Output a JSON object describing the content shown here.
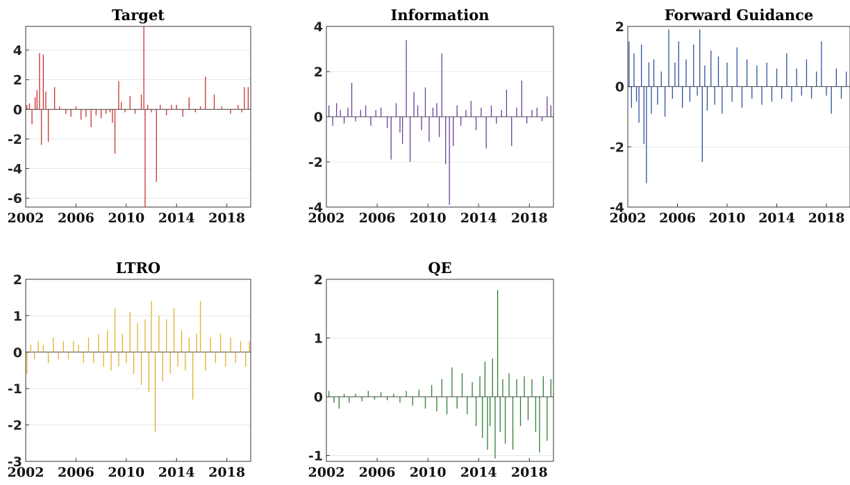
{
  "chart_data": [
    {
      "type": "bar",
      "title": "Target",
      "xlabel": "",
      "ylabel": "",
      "color": "#c8302c",
      "xlim": [
        2002,
        2019.9
      ],
      "ylim": [
        -6.6,
        5.6
      ],
      "yticks": [
        -6,
        -4,
        -2,
        0,
        2,
        4
      ],
      "xticks": [
        2002,
        2006,
        2010,
        2014,
        2018
      ],
      "x": [
        2002.1,
        2002.3,
        2002.5,
        2002.75,
        2002.9,
        2003.1,
        2003.25,
        2003.4,
        2003.6,
        2003.8,
        2004.3,
        2004.7,
        2005.2,
        2005.6,
        2006.0,
        2006.4,
        2006.8,
        2007.2,
        2007.6,
        2008.0,
        2008.4,
        2008.7,
        2008.9,
        2009.1,
        2009.4,
        2009.6,
        2009.9,
        2010.3,
        2010.7,
        2011.2,
        2011.4,
        2011.5,
        2011.7,
        2012.0,
        2012.4,
        2012.7,
        2013.2,
        2013.6,
        2014.0,
        2014.5,
        2015.0,
        2015.5,
        2015.9,
        2016.3,
        2017.0,
        2017.6,
        2018.3,
        2018.9,
        2019.2,
        2019.4,
        2019.7
      ],
      "y": [
        0.3,
        0.4,
        -1.0,
        0.8,
        1.3,
        3.8,
        -2.4,
        3.7,
        1.2,
        -2.2,
        1.5,
        0.2,
        -0.3,
        -0.5,
        0.2,
        -0.7,
        -0.5,
        -1.2,
        -0.4,
        -0.6,
        -0.3,
        -0.2,
        -0.9,
        -3.0,
        1.9,
        0.5,
        -0.2,
        0.9,
        -0.3,
        1.0,
        5.6,
        -6.6,
        0.3,
        -0.2,
        -4.9,
        0.3,
        -0.4,
        0.3,
        0.3,
        -0.5,
        0.8,
        -0.2,
        0.2,
        2.2,
        1.0,
        0.2,
        -0.3,
        0.3,
        -0.2,
        1.5,
        1.5
      ]
    },
    {
      "type": "bar",
      "title": "Information",
      "xlabel": "",
      "ylabel": "",
      "color": "#6a3d9a",
      "xlim": [
        2002,
        2019.9
      ],
      "ylim": [
        -4,
        4
      ],
      "yticks": [
        -4,
        -2,
        0,
        2,
        4
      ],
      "xticks": [
        2002,
        2006,
        2010,
        2014,
        2018
      ],
      "x": [
        2002.2,
        2002.5,
        2002.8,
        2003.1,
        2003.4,
        2003.7,
        2004.0,
        2004.3,
        2004.7,
        2005.1,
        2005.5,
        2005.9,
        2006.3,
        2006.8,
        2007.1,
        2007.5,
        2007.8,
        2008.0,
        2008.3,
        2008.6,
        2008.9,
        2009.2,
        2009.5,
        2009.8,
        2010.1,
        2010.4,
        2010.7,
        2010.9,
        2011.1,
        2011.4,
        2011.7,
        2012.0,
        2012.3,
        2012.6,
        2013.0,
        2013.4,
        2013.8,
        2014.2,
        2014.6,
        2015.0,
        2015.4,
        2015.8,
        2016.2,
        2016.6,
        2017.0,
        2017.4,
        2017.8,
        2018.2,
        2018.6,
        2019.0,
        2019.4,
        2019.7
      ],
      "y": [
        0.5,
        -0.4,
        0.6,
        0.3,
        -0.3,
        0.4,
        1.5,
        -0.2,
        0.3,
        0.5,
        -0.4,
        0.3,
        0.4,
        -0.5,
        -1.9,
        0.6,
        -0.7,
        -1.2,
        3.4,
        -2.0,
        1.1,
        0.5,
        -0.6,
        1.3,
        -1.1,
        0.4,
        0.6,
        -0.9,
        2.8,
        -2.1,
        -3.9,
        -1.3,
        0.5,
        -0.4,
        0.3,
        0.7,
        -0.6,
        0.4,
        -1.4,
        0.5,
        -0.3,
        0.3,
        1.2,
        -1.3,
        0.4,
        1.6,
        -0.3,
        0.3,
        0.4,
        -0.2,
        0.9,
        0.5
      ]
    },
    {
      "type": "bar",
      "title": "Forward Guidance",
      "xlabel": "",
      "ylabel": "",
      "color": "#2c4f9e",
      "xlim": [
        2002,
        2019.9
      ],
      "ylim": [
        -4,
        2
      ],
      "yticks": [
        -4,
        -2,
        0,
        2
      ],
      "xticks": [
        2002,
        2006,
        2010,
        2014,
        2018
      ],
      "x": [
        2002.1,
        2002.3,
        2002.5,
        2002.7,
        2002.9,
        2003.1,
        2003.3,
        2003.5,
        2003.7,
        2003.9,
        2004.1,
        2004.4,
        2004.7,
        2005.0,
        2005.3,
        2005.6,
        2005.8,
        2006.1,
        2006.4,
        2006.7,
        2007.0,
        2007.3,
        2007.6,
        2007.8,
        2008.0,
        2008.2,
        2008.4,
        2008.7,
        2009.0,
        2009.3,
        2009.6,
        2010.0,
        2010.4,
        2010.8,
        2011.2,
        2011.6,
        2012.0,
        2012.4,
        2012.8,
        2013.2,
        2013.6,
        2014.0,
        2014.4,
        2014.8,
        2015.2,
        2015.6,
        2016.0,
        2016.4,
        2016.8,
        2017.2,
        2017.6,
        2018.0,
        2018.4,
        2018.8,
        2019.2,
        2019.6
      ],
      "y": [
        1.5,
        -0.7,
        1.1,
        -0.5,
        -1.2,
        1.4,
        -1.9,
        -3.2,
        0.8,
        -0.9,
        0.9,
        -0.6,
        0.5,
        -1.0,
        1.9,
        -0.4,
        0.8,
        1.5,
        -0.7,
        0.9,
        -0.5,
        1.4,
        -0.3,
        1.9,
        -2.5,
        0.7,
        -0.8,
        1.2,
        -0.6,
        1.0,
        -0.9,
        0.8,
        -0.5,
        1.3,
        -0.7,
        0.9,
        -0.4,
        0.7,
        -0.6,
        0.8,
        -0.5,
        0.6,
        -0.4,
        1.1,
        -0.5,
        0.6,
        -0.3,
        0.9,
        -0.4,
        0.5,
        1.5,
        -0.3,
        -0.9,
        0.6,
        -0.4,
        0.5
      ]
    },
    {
      "type": "bar",
      "title": "LTRO",
      "xlabel": "",
      "ylabel": "",
      "color": "#e0b028",
      "xlim": [
        2002,
        2019.9
      ],
      "ylim": [
        -3,
        2
      ],
      "yticks": [
        -3,
        -2,
        -1,
        0,
        1,
        2
      ],
      "xticks": [
        2002,
        2006,
        2010,
        2014,
        2018
      ],
      "x": [
        2002.1,
        2002.4,
        2002.7,
        2003.0,
        2003.4,
        2003.8,
        2004.2,
        2004.6,
        2005.0,
        2005.4,
        2005.8,
        2006.2,
        2006.6,
        2007.0,
        2007.4,
        2007.8,
        2008.2,
        2008.5,
        2008.8,
        2009.1,
        2009.4,
        2009.7,
        2010.0,
        2010.3,
        2010.6,
        2010.9,
        2011.2,
        2011.5,
        2011.8,
        2012.0,
        2012.3,
        2012.6,
        2012.9,
        2013.2,
        2013.5,
        2013.8,
        2014.1,
        2014.4,
        2014.7,
        2015.0,
        2015.3,
        2015.6,
        2015.9,
        2016.3,
        2016.7,
        2017.1,
        2017.5,
        2017.9,
        2018.3,
        2018.7,
        2019.1,
        2019.5,
        2019.8
      ],
      "y": [
        -0.6,
        0.2,
        -0.2,
        0.3,
        0.2,
        -0.3,
        0.4,
        -0.2,
        0.3,
        -0.2,
        0.3,
        0.2,
        -0.3,
        0.4,
        -0.3,
        0.5,
        -0.4,
        0.6,
        -0.5,
        1.2,
        -0.4,
        0.5,
        -0.3,
        1.1,
        -0.6,
        0.8,
        -0.9,
        0.9,
        -1.1,
        1.4,
        -2.2,
        1.0,
        -0.8,
        0.9,
        -0.6,
        1.2,
        -0.4,
        0.6,
        -0.5,
        0.4,
        -1.3,
        0.5,
        1.4,
        -0.5,
        0.4,
        -0.3,
        0.5,
        -0.4,
        0.4,
        -0.3,
        0.3,
        -0.4,
        0.3
      ]
    },
    {
      "type": "bar",
      "title": "QE",
      "xlabel": "",
      "ylabel": "",
      "color": "#2e7d32",
      "xlim": [
        2002,
        2019.9
      ],
      "ylim": [
        -1.1,
        2
      ],
      "yticks": [
        -1,
        0,
        1,
        2
      ],
      "xticks": [
        2002,
        2006,
        2010,
        2014,
        2018
      ],
      "x": [
        2002.2,
        2002.6,
        2003.0,
        2003.4,
        2003.8,
        2004.3,
        2004.8,
        2005.3,
        2005.8,
        2006.3,
        2006.8,
        2007.3,
        2007.8,
        2008.3,
        2008.8,
        2009.3,
        2009.8,
        2010.3,
        2010.7,
        2011.1,
        2011.5,
        2011.9,
        2012.3,
        2012.7,
        2013.1,
        2013.5,
        2013.8,
        2014.1,
        2014.3,
        2014.5,
        2014.7,
        2014.9,
        2015.1,
        2015.3,
        2015.5,
        2015.7,
        2015.9,
        2016.1,
        2016.4,
        2016.7,
        2017.0,
        2017.3,
        2017.6,
        2017.9,
        2018.2,
        2018.5,
        2018.8,
        2019.1,
        2019.4,
        2019.7
      ],
      "y": [
        0.1,
        -0.1,
        -0.2,
        0.05,
        -0.1,
        0.05,
        -0.08,
        0.1,
        -0.05,
        0.08,
        -0.06,
        0.05,
        -0.1,
        0.1,
        -0.15,
        0.12,
        -0.2,
        0.2,
        -0.25,
        0.3,
        -0.3,
        0.5,
        -0.2,
        0.4,
        -0.3,
        0.25,
        -0.5,
        0.35,
        -0.7,
        0.6,
        -0.9,
        -0.5,
        0.65,
        -1.05,
        1.82,
        -0.6,
        0.3,
        -0.8,
        0.4,
        -0.9,
        0.3,
        -0.5,
        0.35,
        -0.4,
        0.3,
        -0.6,
        -0.95,
        0.35,
        -0.75,
        0.3
      ]
    }
  ]
}
